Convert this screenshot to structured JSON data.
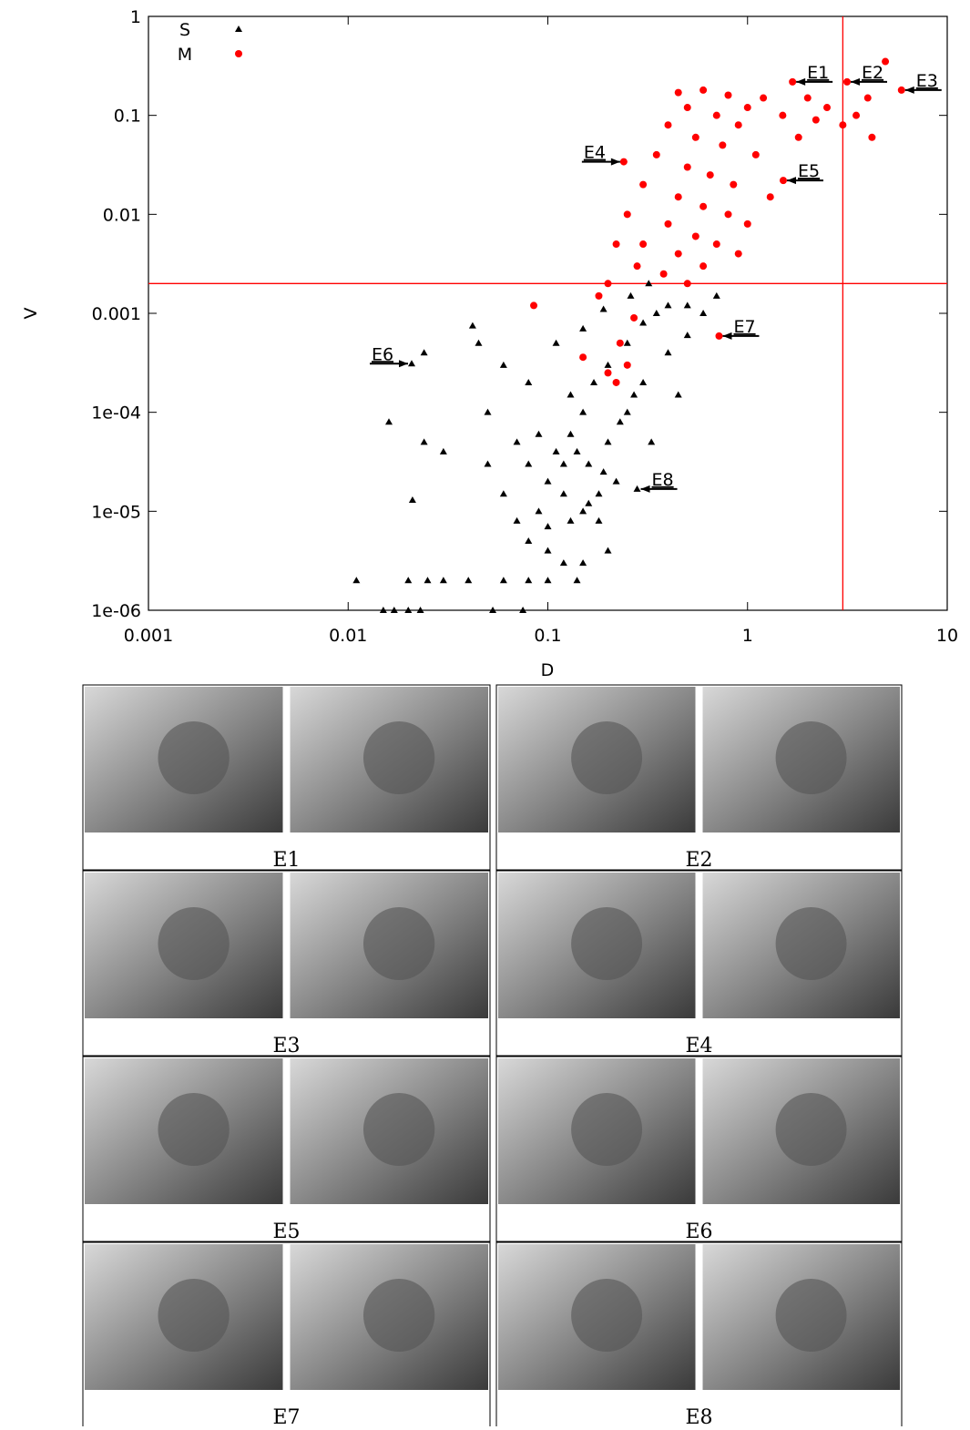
{
  "chart_data": {
    "type": "scatter",
    "xlabel": "D",
    "ylabel": "V",
    "xscale": "log",
    "yscale": "log",
    "xlim": [
      0.001,
      10
    ],
    "ylim": [
      1e-06,
      1
    ],
    "xticks": [
      0.001,
      0.01,
      0.1,
      1,
      10
    ],
    "yticks": [
      1,
      0.1,
      0.01,
      0.001,
      {
        "value": 0.0001,
        "label": "1e-04"
      },
      {
        "value": 1e-05,
        "label": "1e-05"
      },
      {
        "value": 1e-06,
        "label": "1e-06"
      }
    ],
    "legend": "top-left",
    "hlines": [
      {
        "value": 0.002,
        "color": "#ff0000"
      }
    ],
    "vlines": [
      {
        "value": 3,
        "color": "#ff0000"
      }
    ],
    "series": [
      {
        "name": "S",
        "color": "#000000",
        "marker": "triangle",
        "x": [
          0.011,
          0.015,
          0.017,
          0.02,
          0.023,
          0.053,
          0.075,
          0.016,
          0.021,
          0.024,
          0.03,
          0.02,
          0.025,
          0.03,
          0.04,
          0.06,
          0.08,
          0.1,
          0.14,
          0.042,
          0.024,
          0.0208,
          0.045,
          0.06,
          0.08,
          0.05,
          0.07,
          0.05,
          0.06,
          0.07,
          0.08,
          0.1,
          0.12,
          0.15,
          0.2,
          0.09,
          0.1,
          0.12,
          0.15,
          0.18,
          0.11,
          0.13,
          0.15,
          0.17,
          0.2,
          0.25,
          0.3,
          0.35,
          0.4,
          0.12,
          0.14,
          0.16,
          0.2,
          0.25,
          0.3,
          0.4,
          0.5,
          0.6,
          0.7,
          0.28,
          0.33,
          0.45,
          0.5,
          0.22,
          0.18,
          0.1,
          0.13,
          0.16,
          0.19,
          0.23,
          0.27,
          0.15,
          0.19,
          0.26,
          0.32,
          0.11,
          0.08,
          0.09,
          0.13
        ],
        "y": [
          2e-06,
          1e-06,
          1e-06,
          1e-06,
          1e-06,
          1e-06,
          1e-06,
          8e-05,
          1.3e-05,
          5e-05,
          4e-05,
          2e-06,
          2e-06,
          2e-06,
          2e-06,
          2e-06,
          2e-06,
          2e-06,
          2e-06,
          0.00075,
          0.0004,
          0.00031,
          0.0005,
          0.0003,
          0.0002,
          0.0001,
          5e-05,
          3e-05,
          1.5e-05,
          8e-06,
          5e-06,
          4e-06,
          3e-06,
          3e-06,
          4e-06,
          1e-05,
          2e-05,
          1.5e-05,
          1e-05,
          8e-06,
          4e-05,
          6e-05,
          0.0001,
          0.0002,
          0.0003,
          0.0005,
          0.0008,
          0.001,
          0.0012,
          3e-05,
          4e-05,
          3e-05,
          5e-05,
          0.0001,
          0.0002,
          0.0004,
          0.0006,
          0.001,
          0.0015,
          1.68e-05,
          5e-05,
          0.00015,
          0.0012,
          2e-05,
          1.5e-05,
          7e-06,
          8e-06,
          1.2e-05,
          2.5e-05,
          8e-05,
          0.00015,
          0.0007,
          0.0011,
          0.0015,
          0.002,
          0.0005,
          3e-05,
          6e-05,
          0.00015
        ]
      },
      {
        "name": "M",
        "color": "#ff0000",
        "marker": "circle",
        "x": [
          4.9,
          1.68,
          3.15,
          5.9,
          0.24,
          1.51,
          0.72,
          4,
          3.5,
          3,
          4.2,
          2.5,
          2,
          2.2,
          1.8,
          1.5,
          1.2,
          1,
          0.8,
          0.6,
          0.45,
          0.5,
          0.7,
          0.9,
          0.4,
          0.55,
          0.75,
          1.1,
          0.35,
          0.5,
          0.65,
          0.85,
          1.3,
          0.3,
          0.45,
          0.6,
          0.8,
          1,
          0.25,
          0.4,
          0.55,
          0.7,
          0.9,
          0.3,
          0.45,
          0.6,
          0.38,
          0.5,
          0.28,
          0.22,
          0.2,
          0.085,
          0.15,
          0.2,
          0.22,
          0.25,
          0.23,
          0.27,
          0.18
        ],
        "y": [
          0.35,
          0.218,
          0.218,
          0.18,
          0.034,
          0.022,
          0.00059,
          0.15,
          0.1,
          0.08,
          0.06,
          0.12,
          0.15,
          0.09,
          0.06,
          0.1,
          0.15,
          0.12,
          0.16,
          0.18,
          0.17,
          0.12,
          0.1,
          0.08,
          0.08,
          0.06,
          0.05,
          0.04,
          0.04,
          0.03,
          0.025,
          0.02,
          0.015,
          0.02,
          0.015,
          0.012,
          0.01,
          0.008,
          0.01,
          0.008,
          0.006,
          0.005,
          0.004,
          0.005,
          0.004,
          0.003,
          0.0025,
          0.002,
          0.003,
          0.005,
          0.002,
          0.0012,
          0.00036,
          0.00025,
          0.0002,
          0.0003,
          0.0005,
          0.0009,
          0.0015
        ]
      }
    ],
    "annotations": [
      {
        "text": "E1",
        "x": 1.68,
        "y": 0.218,
        "side": "right"
      },
      {
        "text": "E2",
        "x": 3.15,
        "y": 0.218,
        "side": "right"
      },
      {
        "text": "E3",
        "x": 5.9,
        "y": 0.18,
        "side": "right"
      },
      {
        "text": "E4",
        "x": 0.24,
        "y": 0.034,
        "side": "left"
      },
      {
        "text": "E5",
        "x": 1.51,
        "y": 0.022,
        "side": "right"
      },
      {
        "text": "E6",
        "x": 0.0208,
        "y": 0.00031,
        "side": "left"
      },
      {
        "text": "E7",
        "x": 0.72,
        "y": 0.00059,
        "side": "right"
      },
      {
        "text": "E8",
        "x": 0.28,
        "y": 1.68e-05,
        "side": "right"
      }
    ]
  },
  "panels": [
    {
      "caption": "E1"
    },
    {
      "caption": "E2"
    },
    {
      "caption": "E3"
    },
    {
      "caption": "E4"
    },
    {
      "caption": "E5"
    },
    {
      "caption": "E6"
    },
    {
      "caption": "E7"
    },
    {
      "caption": "E8"
    }
  ]
}
